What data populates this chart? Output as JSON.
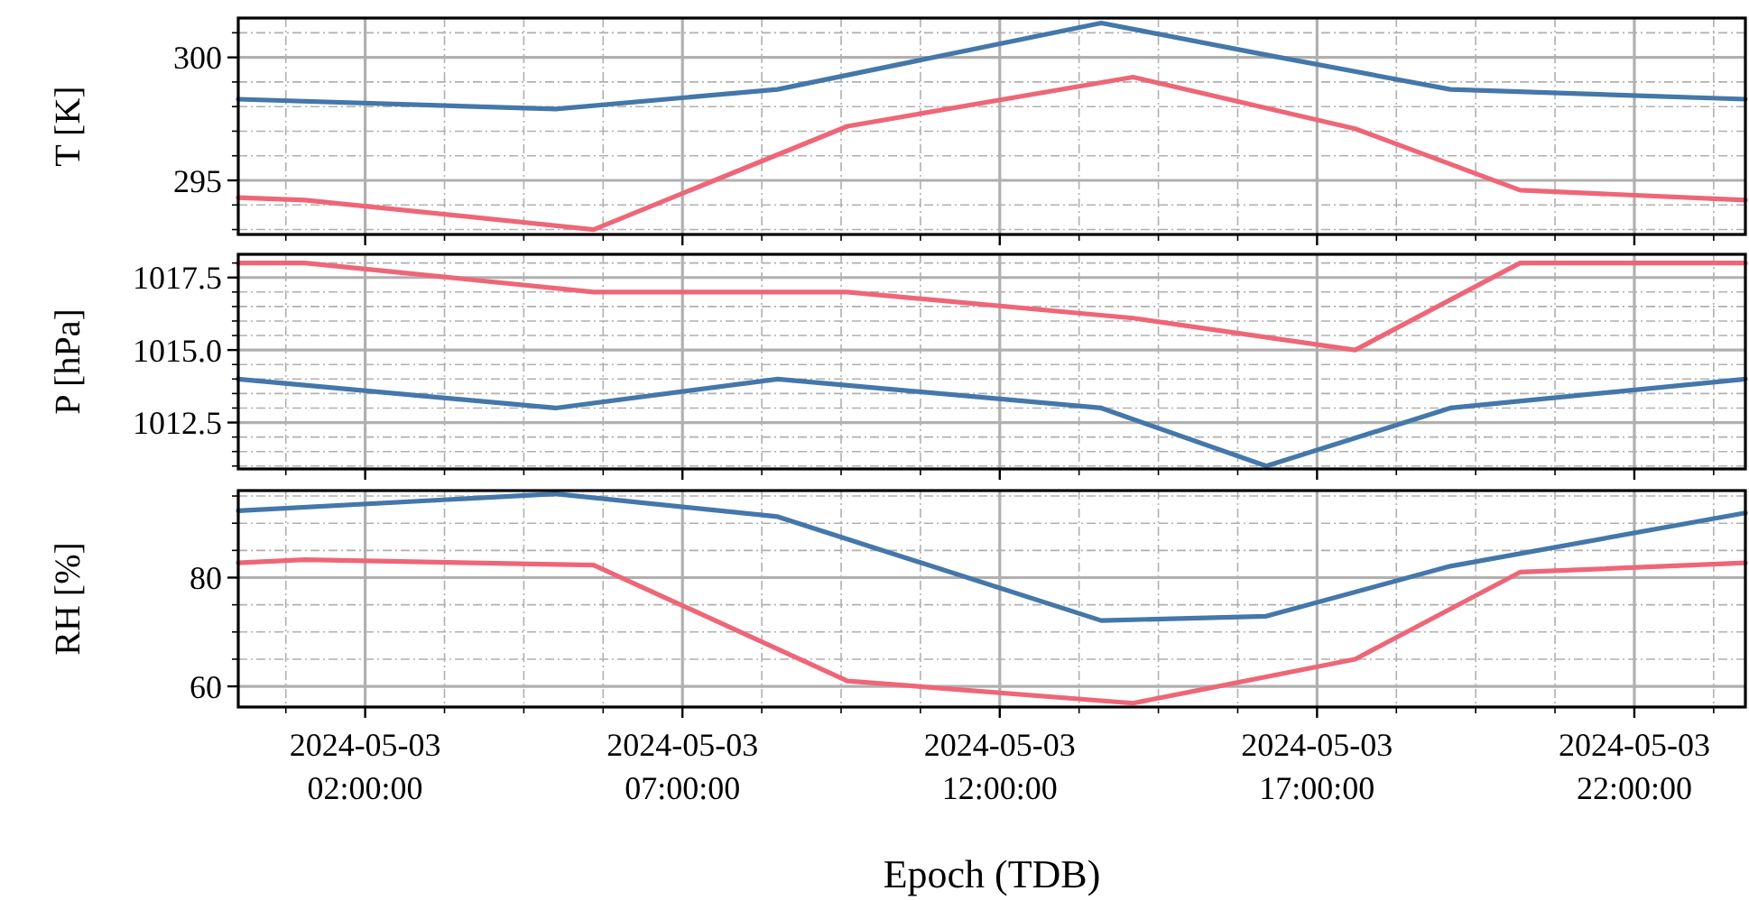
{
  "chart_data": [
    {
      "type": "line",
      "ylabel": "T [K]",
      "tick_labels": "y",
      "grid": true,
      "line_style": "solid",
      "xlim": [
        "2024-05-03T00:00",
        "2024-05-03T23:45"
      ],
      "ylim": [
        292.8,
        301.6
      ],
      "yticks": [
        {
          "value": 293,
          "label": null
        },
        {
          "value": 294,
          "label": null
        },
        295,
        {
          "value": 296,
          "label": null
        },
        {
          "value": 297,
          "label": null
        },
        {
          "value": 298,
          "label": null
        },
        {
          "value": 299,
          "label": null
        },
        300,
        {
          "value": 301,
          "label": null
        }
      ],
      "series": [
        {
          "color": "#4477aa",
          "x": [
            "2024-05-03T00:00",
            "2024-05-03T05:00",
            "2024-05-03T08:30",
            "2024-05-03T13:36",
            "2024-05-03T16:12",
            "2024-05-03T19:06",
            "2024-05-03T23:45"
          ],
          "values": [
            298.3,
            297.9,
            298.7,
            301.4,
            300.1,
            298.7,
            298.3
          ]
        },
        {
          "color": "#ee6677",
          "x": [
            "2024-05-03T00:00",
            "2024-05-03T01:03",
            "2024-05-03T05:36",
            "2024-05-03T09:36",
            "2024-05-03T14:06",
            "2024-05-03T17:36",
            "2024-05-03T20:12",
            "2024-05-03T23:45"
          ],
          "values": [
            294.3,
            294.2,
            293.0,
            297.2,
            299.2,
            297.1,
            294.6,
            294.2
          ]
        }
      ]
    },
    {
      "type": "line",
      "ylabel": "P [hPa]",
      "tick_labels": "y",
      "grid": true,
      "line_style": "solid",
      "xlim": [
        "2024-05-03T00:00",
        "2024-05-03T23:45"
      ],
      "ylim": [
        1010.9,
        1018.3
      ],
      "yticks": [
        {
          "value": 1011.0,
          "label": null
        },
        {
          "value": 1011.5,
          "label": null
        },
        {
          "value": 1012.0,
          "label": null
        },
        {
          "value": 1012.5,
          "label": "1012.5"
        },
        {
          "value": 1013.0,
          "label": null
        },
        {
          "value": 1013.5,
          "label": null
        },
        {
          "value": 1014.0,
          "label": null
        },
        {
          "value": 1014.5,
          "label": null
        },
        {
          "value": 1015.0,
          "label": "1015.0"
        },
        {
          "value": 1015.5,
          "label": null
        },
        {
          "value": 1016.0,
          "label": null
        },
        {
          "value": 1016.5,
          "label": null
        },
        {
          "value": 1017.0,
          "label": null
        },
        {
          "value": 1017.5,
          "label": "1017.5"
        },
        {
          "value": 1018.0,
          "label": null
        }
      ],
      "series": [
        {
          "color": "#4477aa",
          "x": [
            "2024-05-03T00:00",
            "2024-05-03T05:00",
            "2024-05-03T08:30",
            "2024-05-03T13:36",
            "2024-05-03T16:12",
            "2024-05-03T19:06",
            "2024-05-03T23:45"
          ],
          "values": [
            1014.0,
            1013.0,
            1014.0,
            1013.0,
            1011.0,
            1013.0,
            1014.0
          ]
        },
        {
          "color": "#ee6677",
          "x": [
            "2024-05-03T00:00",
            "2024-05-03T01:03",
            "2024-05-03T05:36",
            "2024-05-03T09:36",
            "2024-05-03T14:06",
            "2024-05-03T17:36",
            "2024-05-03T20:12",
            "2024-05-03T23:45"
          ],
          "values": [
            1018.0,
            1018.0,
            1017.0,
            1017.0,
            1016.1,
            1015.0,
            1018.0,
            1018.0
          ]
        }
      ]
    },
    {
      "type": "line",
      "ylabel": "RH [%]",
      "xlabel": "Epoch (TDB)",
      "grid": true,
      "line_style": "solid",
      "xlim": [
        "2024-05-03T00:00",
        "2024-05-03T23:45"
      ],
      "xticks": [
        {
          "value": "2024-05-03T00:45",
          "label": null
        },
        {
          "value": "2024-05-03T02:00",
          "label": "2024-05-03 02:00:00"
        },
        {
          "value": "2024-05-03T03:15",
          "label": null
        },
        {
          "value": "2024-05-03T04:30",
          "label": null
        },
        {
          "value": "2024-05-03T05:45",
          "label": null
        },
        {
          "value": "2024-05-03T07:00",
          "label": "2024-05-03 07:00:00"
        },
        {
          "value": "2024-05-03T08:15",
          "label": null
        },
        {
          "value": "2024-05-03T09:30",
          "label": null
        },
        {
          "value": "2024-05-03T10:45",
          "label": null
        },
        {
          "value": "2024-05-03T12:00",
          "label": "2024-05-03 12:00:00"
        },
        {
          "value": "2024-05-03T13:15",
          "label": null
        },
        {
          "value": "2024-05-03T14:30",
          "label": null
        },
        {
          "value": "2024-05-03T15:45",
          "label": null
        },
        {
          "value": "2024-05-03T17:00",
          "label": "2024-05-03 17:00:00"
        },
        {
          "value": "2024-05-03T18:15",
          "label": null
        },
        {
          "value": "2024-05-03T19:30",
          "label": null
        },
        {
          "value": "2024-05-03T20:45",
          "label": null
        },
        {
          "value": "2024-05-03T22:00",
          "label": "2024-05-03 22:00:00"
        },
        {
          "value": "2024-05-03T23:15",
          "label": null
        }
      ],
      "ylim": [
        56.2,
        96
      ],
      "yticks": [
        60,
        {
          "value": 65,
          "label": null
        },
        {
          "value": 70,
          "label": null
        },
        {
          "value": 75,
          "label": null
        },
        80,
        {
          "value": 85,
          "label": null
        },
        {
          "value": 90,
          "label": null
        },
        {
          "value": 95,
          "label": null
        }
      ],
      "series": [
        {
          "color": "#4477aa",
          "x": [
            "2024-05-03T00:00",
            "2024-05-03T05:00",
            "2024-05-03T08:30",
            "2024-05-03T13:36",
            "2024-05-03T16:12",
            "2024-05-03T19:06",
            "2024-05-03T23:45"
          ],
          "values": [
            92.3,
            95.4,
            91.2,
            72.1,
            72.9,
            82.1,
            91.9
          ]
        },
        {
          "color": "#ee6677",
          "x": [
            "2024-05-03T00:00",
            "2024-05-03T01:03",
            "2024-05-03T05:36",
            "2024-05-03T09:36",
            "2024-05-03T14:06",
            "2024-05-03T17:36",
            "2024-05-03T20:12",
            "2024-05-03T23:45"
          ],
          "values": [
            82.7,
            83.3,
            82.3,
            61.0,
            56.9,
            65.0,
            81.0,
            82.7
          ]
        }
      ]
    }
  ]
}
